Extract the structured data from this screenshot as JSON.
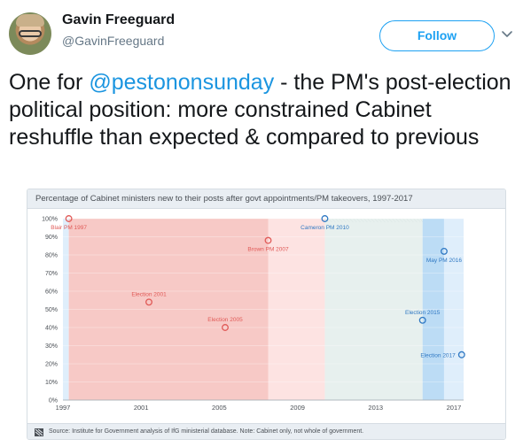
{
  "tweet": {
    "author_name": "Gavin Freeguard",
    "author_handle": "@GavinFreeguard",
    "follow_label": "Follow",
    "text_mention": "@pestononsunday",
    "text_part1": "One for ",
    "text_part2": " - the PM's post-election political position: more constrained Cabinet reshuffle than expected & compared to previous"
  },
  "icons": {
    "avatar": "profile-photo",
    "menu": "chevron-down-icon",
    "source": "source-flag-icon"
  },
  "colors": {
    "accent": "#1da1f2",
    "mention": "#1b95e0",
    "labour_dark": "#f7c9c6",
    "labour_light": "#fde3e2",
    "coalition": "#e7f0ee",
    "cons_dark": "#bcdcf5",
    "cons_light": "#dfeefb",
    "red_mark": "#e05a57",
    "blue_mark": "#2f78c3"
  },
  "card": {
    "title": "Percentage of Cabinet ministers new to their posts after govt appointments/PM takeovers, 1997-2017",
    "source": "Source: Institute for Government analysis of IfG ministerial database. Note: Cabinet only, not whole of government."
  },
  "chart_data": {
    "type": "scatter",
    "title": "Percentage of Cabinet ministers new to their posts after govt appointments/PM takeovers, 1997-2017",
    "xlim": [
      1997,
      2017.5
    ],
    "ylim": [
      0,
      100
    ],
    "x_ticks": [
      "1997",
      "2001",
      "2005",
      "2009",
      "2013",
      "2017"
    ],
    "x_tick_values": [
      1997,
      2001,
      2005,
      2009,
      2013,
      2017
    ],
    "y_ticks": [
      "0%",
      "10%",
      "20%",
      "30%",
      "40%",
      "50%",
      "60%",
      "70%",
      "80%",
      "90%",
      "100%"
    ],
    "y_tick_values": [
      0,
      10,
      20,
      30,
      40,
      50,
      60,
      70,
      80,
      90,
      100
    ],
    "grid": true,
    "background_periods": [
      {
        "from": 1997,
        "to": 1997.3,
        "color": "cons_light"
      },
      {
        "from": 1997.3,
        "to": 2007.5,
        "color": "labour_dark"
      },
      {
        "from": 2007.5,
        "to": 2010.4,
        "color": "labour_light"
      },
      {
        "from": 2010.4,
        "to": 2015.4,
        "color": "coalition"
      },
      {
        "from": 2015.4,
        "to": 2016.5,
        "color": "cons_dark"
      },
      {
        "from": 2016.5,
        "to": 2017.5,
        "color": "cons_light"
      }
    ],
    "points": [
      {
        "label": "Blair PM 1997",
        "x": 1997.3,
        "y": 100,
        "party": "red",
        "label_pos": "below"
      },
      {
        "label": "Election 2001",
        "x": 2001.4,
        "y": 54,
        "party": "red",
        "label_pos": "above"
      },
      {
        "label": "Election 2005",
        "x": 2005.3,
        "y": 40,
        "party": "red",
        "label_pos": "above"
      },
      {
        "label": "Brown PM 2007",
        "x": 2007.5,
        "y": 88,
        "party": "red",
        "label_pos": "below"
      },
      {
        "label": "Cameron PM 2010",
        "x": 2010.4,
        "y": 100,
        "party": "blue",
        "label_pos": "below"
      },
      {
        "label": "Election 2015",
        "x": 2015.4,
        "y": 44,
        "party": "blue",
        "label_pos": "above"
      },
      {
        "label": "May PM 2016",
        "x": 2016.5,
        "y": 82,
        "party": "blue",
        "label_pos": "below"
      },
      {
        "label": "Election 2017",
        "x": 2017.4,
        "y": 25,
        "party": "blue",
        "label_pos": "left"
      }
    ]
  }
}
